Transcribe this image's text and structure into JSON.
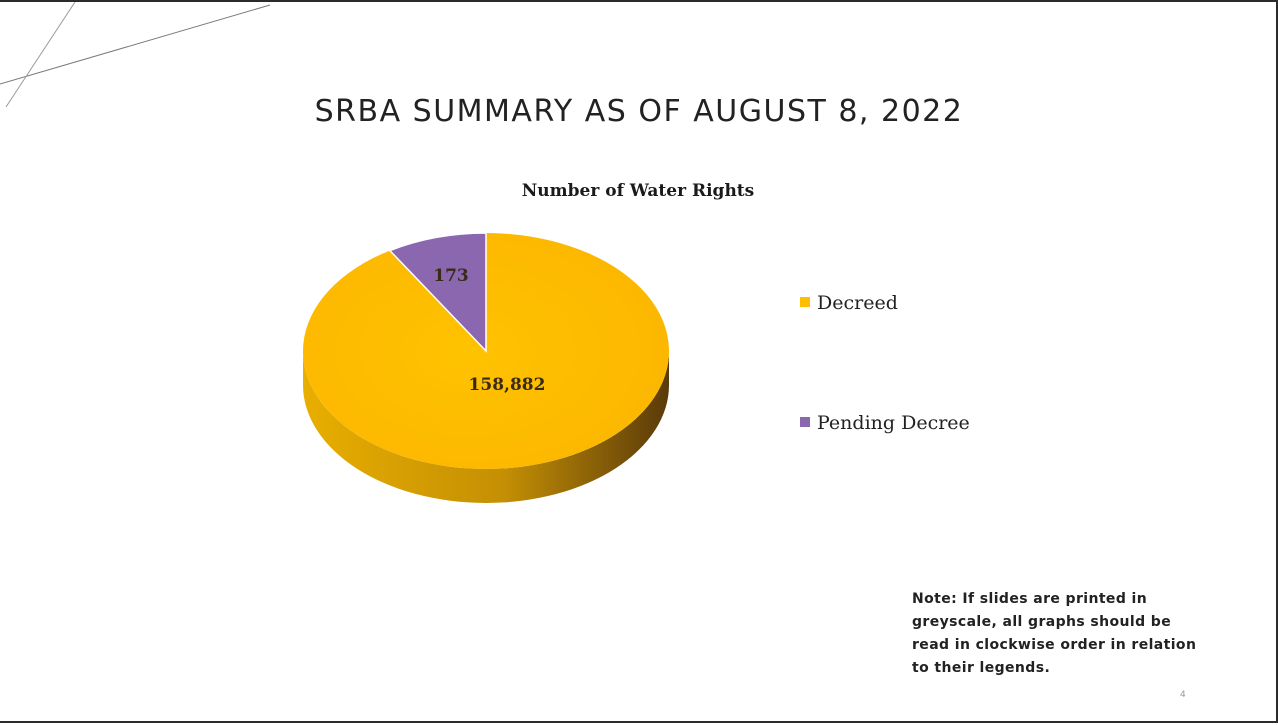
{
  "slide": {
    "title": "SRBA SUMMARY AS OF AUGUST 8, 2022",
    "note": "Note: If slides are printed in greyscale, all graphs should be read in clockwise order in relation to their legends.",
    "page_number": "4"
  },
  "chart_data": {
    "type": "pie",
    "title": "Number of Water Rights",
    "categories": [
      "Decreed",
      "Pending Decree"
    ],
    "values": [
      158882,
      173
    ],
    "data_labels": [
      "158,882",
      "173"
    ],
    "colors": [
      "#FFBE00",
      "#8A67AE"
    ],
    "style": "3d",
    "legend": "right"
  }
}
